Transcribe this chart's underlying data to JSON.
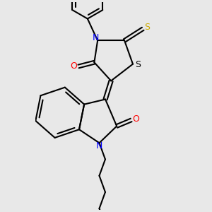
{
  "background_color": "#e8e8e8",
  "bond_color": "#000000",
  "N_color": "#0000ff",
  "O_color": "#ff0000",
  "S_color": "#ccaa00",
  "S_ring_color": "#000000",
  "line_width": 1.5,
  "dbo": 0.055,
  "figsize": [
    3.0,
    3.0
  ],
  "dpi": 100,
  "xlim": [
    -2.0,
    2.2
  ],
  "ylim": [
    -3.6,
    2.6
  ]
}
